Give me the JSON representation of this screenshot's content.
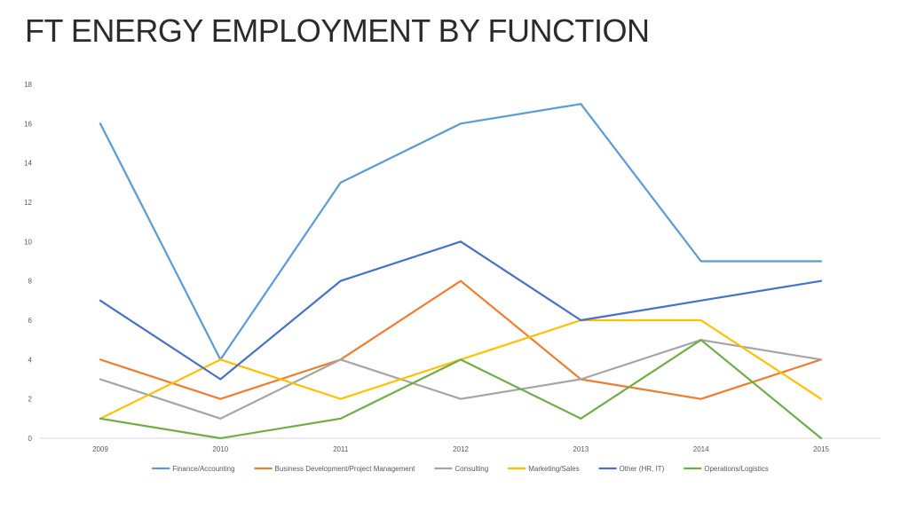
{
  "slide": {
    "title": "FT ENERGY EMPLOYMENT BY FUNCTION"
  },
  "chart_data": {
    "type": "line",
    "title": "",
    "xlabel": "",
    "ylabel": "",
    "categories": [
      "2009",
      "2010",
      "2011",
      "2012",
      "2013",
      "2014",
      "2015"
    ],
    "ylim": [
      0,
      18
    ],
    "yticks": [
      0,
      2,
      4,
      6,
      8,
      10,
      12,
      14,
      16,
      18
    ],
    "grid": false,
    "legend_position": "bottom",
    "series": [
      {
        "name": "Finance/Accounting",
        "color": "#5b9bd5",
        "values": [
          16,
          4,
          13,
          16,
          17,
          9,
          9
        ]
      },
      {
        "name": "Business Development/Project Management",
        "color": "#ed7d31",
        "values": [
          4,
          2,
          4,
          8,
          3,
          2,
          4
        ]
      },
      {
        "name": "Consulting",
        "color": "#a5a5a5",
        "values": [
          3,
          1,
          4,
          2,
          3,
          5,
          4
        ]
      },
      {
        "name": "Marketing/Sales",
        "color": "#ffc000",
        "values": [
          1,
          4,
          2,
          4,
          6,
          6,
          2
        ]
      },
      {
        "name": "Other (HR, IT)",
        "color": "#4472c4",
        "values": [
          7,
          3,
          8,
          10,
          6,
          7,
          8
        ]
      },
      {
        "name": "Operations/Logistics",
        "color": "#70ad47",
        "values": [
          1,
          0,
          1,
          4,
          1,
          5,
          0
        ]
      }
    ]
  }
}
